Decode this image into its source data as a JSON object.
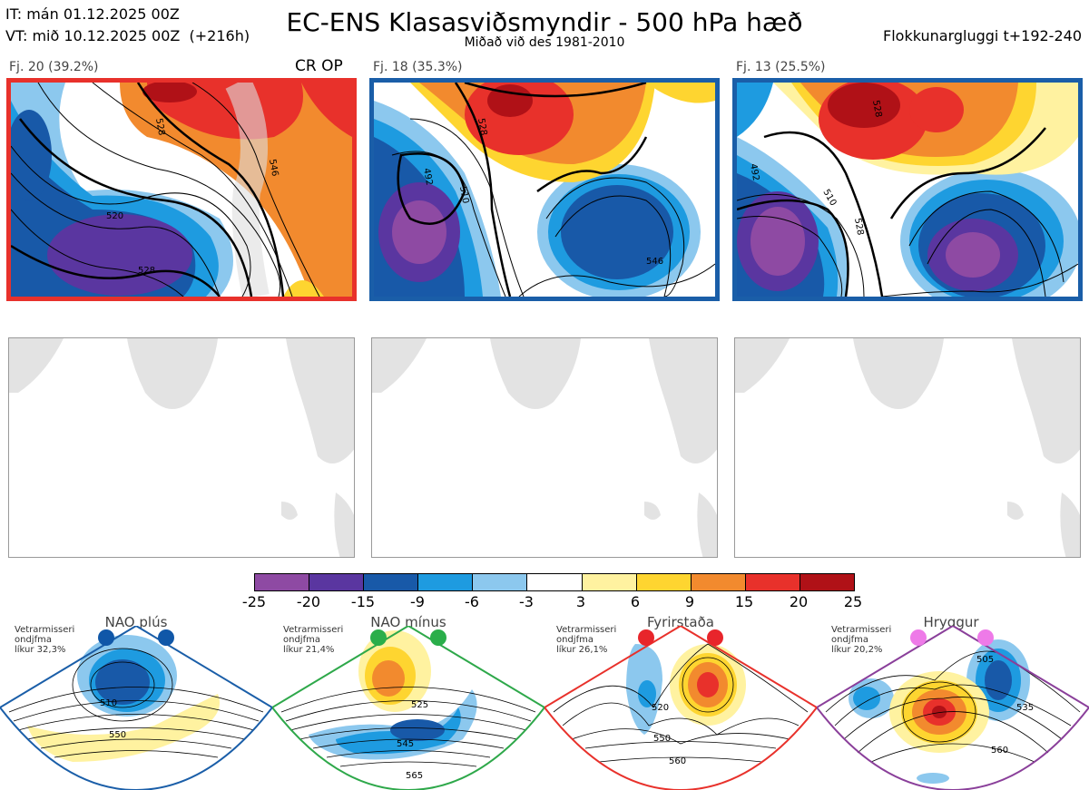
{
  "header": {
    "it_line": "IT: mán 01.12.2025 00Z",
    "vt_line": "VT: mið 10.12.2025 00Z  (+216h)",
    "title": "EC-ENS Klasasviðsmyndir - 500 hPa hæð",
    "subtitle": "Miðað við des 1981-2010",
    "window": "Flokkunargluggi t+192-240"
  },
  "clusters": [
    {
      "label": "Fj. 20 (39.2%)",
      "tag": "CR OP",
      "border_color": "#e8312b",
      "contour_labels": [
        "528",
        "546",
        "520",
        "528",
        "528",
        "564"
      ]
    },
    {
      "label": "Fj. 18 (35.3%)",
      "tag": "",
      "border_color": "#1a5ea8",
      "contour_labels": [
        "528",
        "546",
        "492",
        "510",
        "528",
        "546",
        "564"
      ]
    },
    {
      "label": "Fj. 13 (25.5%)",
      "tag": "",
      "border_color": "#1a5ea8",
      "contour_labels": [
        "528",
        "510",
        "528",
        "546",
        "492",
        "546"
      ]
    }
  ],
  "colorbar": {
    "ticks": [
      "-25",
      "-20",
      "-15",
      "-9",
      "-6",
      "-3",
      "3",
      "6",
      "9",
      "15",
      "20",
      "25"
    ],
    "colors": [
      "#8e4aa3",
      "#5a36a0",
      "#1859a8",
      "#1e9be0",
      "#8cc8ee",
      "#ffffff",
      "#fff2a0",
      "#fed530",
      "#f28a2e",
      "#e8312b",
      "#b01117"
    ]
  },
  "regimes": [
    {
      "name": "NAO plús",
      "note1": "Vetrarmisseri",
      "note2": "ondjfma",
      "note3": "líkur 32,3%",
      "color": "#1a5ea8",
      "dot_color": "#1057a8",
      "labels": [
        "510",
        "550"
      ]
    },
    {
      "name": "NAO mínus",
      "note1": "Vetrarmisseri",
      "note2": "ondjfma",
      "note3": "líkur 21,4%",
      "color": "#2ea84a",
      "dot_color": "#2aae4a",
      "labels": [
        "525",
        "545",
        "565"
      ]
    },
    {
      "name": "Fyrirstaða",
      "note1": "Vetrarmisseri",
      "note2": "ondjfma",
      "note3": "líkur 26,1%",
      "color": "#e8312b",
      "dot_color": "#e8252b",
      "labels": [
        "520",
        "550",
        "560"
      ]
    },
    {
      "name": "Hryggur",
      "note1": "Vetrarmisseri",
      "note2": "ondjfma",
      "note3": "líkur 20,2%",
      "color": "#8a3f9a",
      "dot_color": "#ee7ae8",
      "labels": [
        "505",
        "535",
        "560"
      ]
    }
  ]
}
